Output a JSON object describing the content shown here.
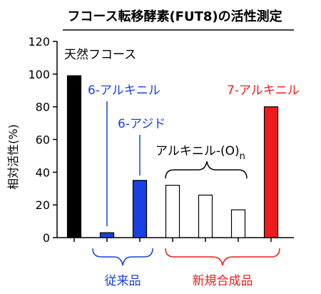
{
  "chart_data": {
    "type": "bar",
    "title": "フコース転移酵素(FUT8)の活性測定",
    "ylabel": "相対活性(%)",
    "ylim": [
      0,
      120
    ],
    "yticks": [
      0,
      20,
      40,
      60,
      80,
      100,
      120
    ],
    "grid": false,
    "categories": [
      "天然フコース",
      "6-アルキニル",
      "6-アジド",
      "アルキニル-(O)n 1",
      "アルキニル-(O)n 2",
      "アルキニル-(O)n 3",
      "7-アルキニル"
    ],
    "values": [
      99,
      3,
      35,
      32,
      26,
      17,
      80
    ],
    "bar_colors": [
      "#000000",
      "#1a3fe0",
      "#1a3fe0",
      "#ffffff",
      "#ffffff",
      "#ffffff",
      "#ee1c1c"
    ],
    "annotations": {
      "natural": "天然フコース",
      "alkynyl6": "6-アルキニル",
      "azide6": "6-アジド",
      "alkynylOn": "アルキニル-(O)",
      "alkynylOn_sub": "n",
      "alkynyl7": "7-アルキニル"
    },
    "groups": {
      "existing": "従来品",
      "new": "新規合成品"
    }
  },
  "colors": {
    "blue": "#1a3fe0",
    "red": "#ee1c1c",
    "black": "#000000"
  }
}
